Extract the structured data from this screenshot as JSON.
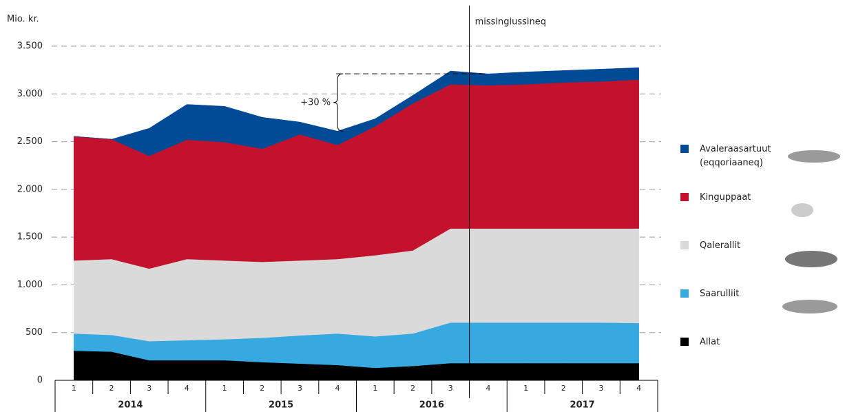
{
  "chart_data": {
    "type": "stacked-area",
    "y_label": "Mio. kr.",
    "categories": [
      "1",
      "2",
      "3",
      "4",
      "1",
      "2",
      "3",
      "4",
      "1",
      "2",
      "3",
      "4",
      "1",
      "2",
      "3",
      "4"
    ],
    "years": [
      "2014",
      "2015",
      "2016",
      "2017"
    ],
    "series": [
      {
        "name": "Allat",
        "color": "#000000",
        "values": [
          310,
          300,
          210,
          210,
          210,
          190,
          175,
          160,
          130,
          150,
          180,
          180,
          180,
          180,
          180,
          180
        ]
      },
      {
        "name": "Saarulliit",
        "color": "#36a9e1",
        "values": [
          180,
          175,
          200,
          210,
          220,
          255,
          295,
          330,
          330,
          340,
          425,
          425,
          425,
          425,
          425,
          420
        ]
      },
      {
        "name": "Qalerallit",
        "color": "#dadada",
        "values": [
          765,
          795,
          760,
          850,
          825,
          795,
          785,
          780,
          850,
          870,
          985,
          985,
          985,
          985,
          985,
          990
        ]
      },
      {
        "name": "Kinguppaat",
        "color": "#c4122c",
        "values": [
          1300,
          1255,
          1180,
          1250,
          1240,
          1185,
          1320,
          1195,
          1350,
          1540,
          1510,
          1500,
          1510,
          1530,
          1540,
          1560
        ]
      },
      {
        "name": "Avaleraasartuut (eqqoriaaneq)",
        "color": "#004a96",
        "values": [
          0,
          0,
          290,
          370,
          375,
          330,
          130,
          145,
          80,
          85,
          140,
          120,
          130,
          125,
          130,
          125
        ]
      }
    ],
    "ylim": [
      0,
      3500
    ],
    "yticks": [
      0,
      500,
      {
        "value": 1000,
        "label": "1.000"
      },
      {
        "value": 1500,
        "label": "1.500"
      },
      {
        "value": 2000,
        "label": "2.000"
      },
      {
        "value": 2500,
        "label": "2.500"
      },
      {
        "value": 3000,
        "label": "3.000"
      },
      {
        "value": 3500,
        "label": "3.500"
      }
    ],
    "grid": true,
    "forecast_label": "missingiussineq",
    "annotation": "+30 %"
  }
}
